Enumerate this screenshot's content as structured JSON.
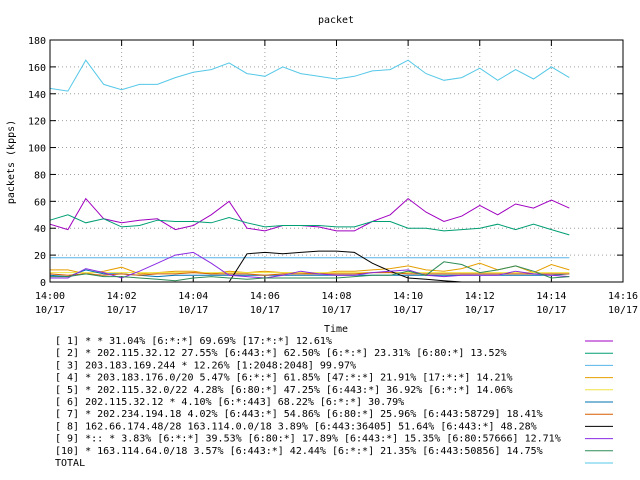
{
  "chart_data": {
    "type": "line",
    "title": "packet",
    "xlabel": "Time",
    "ylabel": "packets (kpps)",
    "ylim": [
      0,
      180
    ],
    "yticks": [
      0,
      20,
      40,
      60,
      80,
      100,
      120,
      140,
      160,
      180
    ],
    "xlim": [
      "14:00",
      "14:16"
    ],
    "xticks": [
      {
        "time": "14:00",
        "date": "10/17"
      },
      {
        "time": "14:02",
        "date": "10/17"
      },
      {
        "time": "14:04",
        "date": "10/17"
      },
      {
        "time": "14:06",
        "date": "10/17"
      },
      {
        "time": "14:08",
        "date": "10/17"
      },
      {
        "time": "14:10",
        "date": "10/17"
      },
      {
        "time": "14:12",
        "date": "10/17"
      },
      {
        "time": "14:14",
        "date": "10/17"
      },
      {
        "time": "14:16",
        "date": "10/17"
      }
    ],
    "grid": true,
    "legend_position": "bottom",
    "x": [
      "14:00",
      "14:00:30",
      "14:01",
      "14:01:30",
      "14:02",
      "14:02:30",
      "14:03",
      "14:03:30",
      "14:04",
      "14:04:30",
      "14:05",
      "14:05:30",
      "14:06",
      "14:06:30",
      "14:07",
      "14:07:30",
      "14:08",
      "14:08:30",
      "14:09",
      "14:09:30",
      "14:10",
      "14:10:30",
      "14:11",
      "14:11:30",
      "14:12",
      "14:12:30",
      "14:13",
      "14:13:30",
      "14:14",
      "14:14:30"
    ],
    "series": [
      {
        "name": "[ 1] * * 31.04%  [6:*:*] 69.69% [17:*:*] 12.61%",
        "color": "#a000c0",
        "values": [
          43,
          39,
          62,
          47,
          44,
          46,
          47,
          39,
          42,
          50,
          60,
          40,
          38,
          42,
          42,
          41,
          38,
          38,
          45,
          50,
          62,
          52,
          45,
          49,
          57,
          50,
          58,
          55,
          61,
          55
        ]
      },
      {
        "name": "[ 2] * 202.115.32.12 27.55%  [6:443:*] 62.50% [6:*:*] 23.31% [6:80:*] 13.52%",
        "color": "#009e73",
        "values": [
          46,
          50,
          44,
          47,
          41,
          42,
          46,
          45,
          45,
          44,
          48,
          44,
          41,
          42,
          42,
          42,
          41,
          41,
          45,
          45,
          40,
          40,
          38,
          39,
          40,
          43,
          39,
          43,
          39,
          35
        ]
      },
      {
        "name": "[ 3] 203.183.169.244 * 12.26%  [1:2048:2048] 99.97%",
        "color": "#56b4e9",
        "values": [
          18,
          18,
          18,
          18,
          18,
          18,
          18,
          18,
          18,
          18,
          18,
          18,
          18,
          18,
          18,
          18,
          18,
          18,
          18,
          18,
          18,
          18,
          18,
          18,
          18,
          18,
          18,
          18,
          18,
          18
        ]
      },
      {
        "name": "[ 4] * 203.183.176.0/20 5.47%  [6:*:*] 61.85% [47:*:*] 21.91% [17:*:*] 14.21%",
        "color": "#e69f00",
        "values": [
          9,
          9,
          6,
          8,
          11,
          6,
          7,
          8,
          8,
          6,
          8,
          7,
          8,
          7,
          7,
          6,
          8,
          8,
          9,
          10,
          12,
          9,
          8,
          10,
          14,
          9,
          12,
          7,
          13,
          9
        ]
      },
      {
        "name": "[ 5] * 202.115.32.0/22 4.28%  [6:80:*] 47.25% [6:443:*] 36.92% [6:*:*] 14.06%",
        "color": "#f0e442",
        "values": [
          7,
          7,
          7,
          7,
          7,
          7,
          7,
          7,
          7,
          7,
          7,
          7,
          7,
          7,
          7,
          7,
          7,
          7,
          7,
          7,
          7,
          7,
          7,
          7,
          7,
          7,
          7,
          7,
          7,
          7
        ]
      },
      {
        "name": "[ 6] 202.115.32.12 * 4.10%  [6:*:443] 68.22% [6:*:*] 30.79%",
        "color": "#0072b2",
        "values": [
          5,
          4,
          9,
          6,
          6,
          5,
          4,
          5,
          5,
          5,
          5,
          5,
          5,
          5,
          5,
          5,
          5,
          5,
          5,
          5,
          5,
          5,
          5,
          5,
          5,
          5,
          5,
          5,
          5,
          6
        ]
      },
      {
        "name": "[ 7] * 202.234.194.18 4.02%  [6:443:*] 54.86% [6:80:*] 25.96% [6:443:58729] 18.41%",
        "color": "#d55e00",
        "values": [
          6,
          5,
          6,
          5,
          6,
          5,
          6,
          6,
          7,
          6,
          6,
          6,
          5,
          6,
          6,
          6,
          6,
          6,
          7,
          7,
          6,
          6,
          6,
          6,
          6,
          6,
          6,
          6,
          6,
          6
        ]
      },
      {
        "name": "[ 8] 162.66.174.48/28 163.114.0.0/18 3.89%  [6:443:36405] 51.64% [6:443:*] 48.28%",
        "color": "#000000",
        "values": [
          0,
          0,
          0,
          0,
          0,
          0,
          0,
          0,
          0,
          0,
          0,
          21,
          22,
          21,
          22,
          23,
          23,
          22,
          14,
          8,
          3,
          2,
          1,
          0,
          0,
          0,
          0,
          0,
          0,
          0
        ]
      },
      {
        "name": "[ 9] *:: * 3.83%  [6:*:*] 39.53% [6:80:*] 17.89% [6:443:*] 15.35% [6:80:57666] 12.71%",
        "color": "#8a2be2",
        "values": [
          3,
          3,
          10,
          7,
          3,
          8,
          14,
          20,
          22,
          14,
          5,
          4,
          3,
          5,
          8,
          6,
          5,
          5,
          7,
          8,
          9,
          5,
          4,
          5,
          5,
          5,
          8,
          6,
          5,
          4
        ]
      },
      {
        "name": "[10] * 163.114.64.0/18 3.57%  [6:443:*] 42.44% [6:*:*] 21.35% [6:443:50856] 14.75%",
        "color": "#2e8b57",
        "values": [
          4,
          4,
          6,
          4,
          4,
          3,
          2,
          1,
          3,
          4,
          3,
          2,
          3,
          3,
          3,
          3,
          3,
          4,
          5,
          5,
          8,
          5,
          15,
          13,
          7,
          9,
          12,
          8,
          3,
          4
        ]
      },
      {
        "name": "TOTAL",
        "color": "#56c8e8",
        "values": [
          144,
          142,
          165,
          147,
          143,
          147,
          147,
          152,
          156,
          158,
          163,
          155,
          153,
          160,
          155,
          153,
          151,
          153,
          157,
          158,
          165,
          155,
          150,
          152,
          159,
          150,
          158,
          151,
          160,
          152
        ]
      }
    ]
  }
}
